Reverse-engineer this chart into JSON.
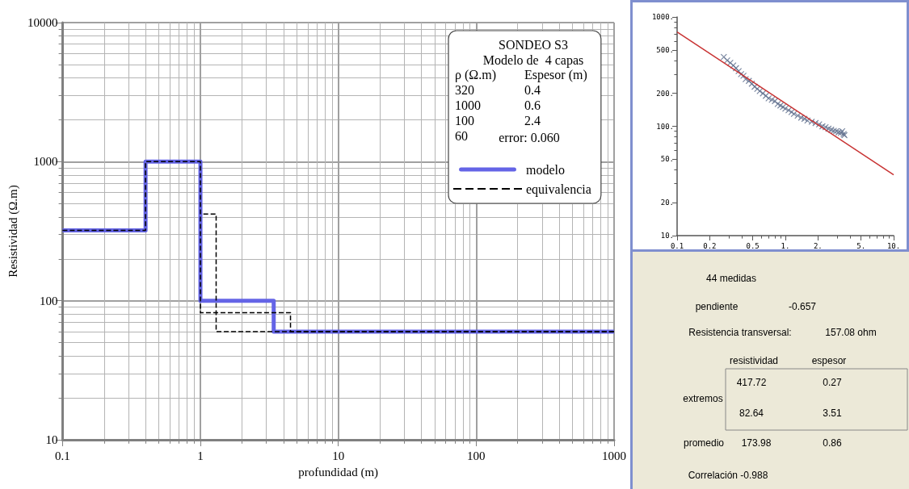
{
  "chart_data": [
    {
      "type": "step",
      "title": "SONDEO S3",
      "subtitle": "Modelo de  4 capas",
      "xlabel": "profundidad (m)",
      "ylabel": "Resistividad (Ω.m)",
      "annotations": [
        "ρ (Ω.m)",
        "Espesor (m)",
        "320",
        "0.4",
        "1000",
        "0.6",
        "100",
        "2.4",
        "60",
        "error: 0.060"
      ],
      "series": [
        {
          "name": "modelo",
          "color": "#6464e6",
          "line_style": "solid",
          "x": [
            0.1,
            0.4,
            1,
            3.4,
            1000
          ],
          "values": [
            320,
            1000,
            100,
            60,
            60
          ]
        },
        {
          "name": "equivalencia",
          "color": "#000000",
          "line_style": "dashed",
          "x": [
            0.1,
            0.4,
            1,
            4.5,
            1000
          ],
          "values": [
            320,
            1000,
            82,
            60,
            60
          ]
        },
        {
          "color": "#000000",
          "line_style": "dashed",
          "x": [
            1.05,
            1.3,
            1000
          ],
          "values": [
            420,
            60,
            60
          ]
        }
      ],
      "log": "xy",
      "xlim": [
        0.1,
        1000
      ],
      "ylim": [
        10,
        10000
      ],
      "xticks": [
        0.1,
        1,
        10,
        100,
        1000
      ],
      "yticks": [
        10,
        100,
        1000,
        10000
      ],
      "grid": true,
      "legend": "top right"
    },
    {
      "type": "scatter",
      "marker": "cross",
      "log": "xy",
      "xlim": [
        0.1,
        10
      ],
      "ylim": [
        10,
        1000
      ],
      "xticks": [
        0.1,
        0.2,
        0.5,
        {
          "value": 1,
          "label": "1."
        },
        {
          "value": 2,
          "label": "2."
        },
        {
          "value": 5,
          "label": "5."
        },
        {
          "value": 10,
          "label": "10."
        }
      ],
      "yticks": [
        {
          "value": 10,
          "label": "10."
        },
        {
          "value": 20,
          "label": "20."
        },
        {
          "value": 50,
          "label": "50."
        },
        {
          "value": 100,
          "label": "100."
        },
        {
          "value": 200,
          "label": "200."
        },
        {
          "value": 500,
          "label": "500."
        },
        {
          "value": 1000,
          "label": "1000."
        }
      ],
      "series": [
        {
          "color": "#5a6a8a",
          "x": [
            0.27,
            0.29,
            0.31,
            0.33,
            0.35,
            0.37,
            0.39,
            0.41,
            0.43,
            0.46,
            0.49,
            0.52,
            0.55,
            0.58,
            0.62,
            0.66,
            0.7,
            0.75,
            0.8,
            0.85,
            0.9,
            0.95,
            1.0,
            1.07,
            1.14,
            1.2,
            1.3,
            1.4,
            1.5,
            1.6,
            1.75,
            1.9,
            2.05,
            2.2,
            2.35,
            2.5,
            2.65,
            2.8,
            2.95,
            3.1,
            3.25,
            3.35,
            3.45,
            3.51
          ],
          "values": [
            430,
            400,
            380,
            360,
            340,
            320,
            300,
            290,
            270,
            260,
            245,
            230,
            220,
            210,
            200,
            190,
            180,
            175,
            170,
            160,
            155,
            150,
            145,
            140,
            135,
            130,
            125,
            120,
            117,
            113,
            110,
            107,
            104,
            100,
            98,
            95,
            93,
            91,
            90,
            88,
            87,
            90,
            85,
            83
          ]
        },
        {
          "type": "line",
          "marker": "none",
          "color": "#c83232",
          "x": [
            0.1,
            10
          ],
          "values": [
            730,
            36
          ]
        }
      ]
    },
    {
      "type": "other",
      "annotations": [
        "44 medidas",
        "pendiente",
        "-0.657",
        "Resistencia transversal:",
        "157.08 ohm",
        "resistividad",
        "espesor",
        "extremos",
        "417.72",
        "0.27",
        "82.64",
        "3.51",
        "promedio",
        "173.98",
        "0.86",
        "Correlación -0.988"
      ]
    }
  ]
}
